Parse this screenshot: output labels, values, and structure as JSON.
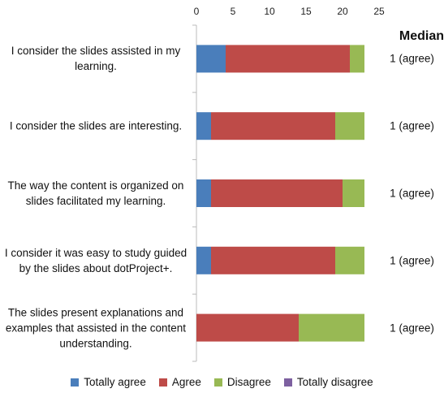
{
  "chart_data": {
    "type": "stacked-barh",
    "categories": [
      "I consider the slides assisted in my learning.",
      "I consider the slides are interesting.",
      "The way the content is organized on slides facilitated my learning.",
      "I consider it was easy to study guided by the slides about dotProject+.",
      "The slides present explanations and examples that assisted in the content understanding."
    ],
    "series": [
      {
        "name": "Totally agree",
        "color": "#4a7ebb",
        "values": [
          4,
          2,
          2,
          2,
          0
        ]
      },
      {
        "name": "Agree",
        "color": "#be4b48",
        "values": [
          17,
          17,
          18,
          17,
          14
        ]
      },
      {
        "name": "Disagree",
        "color": "#98b954",
        "values": [
          2,
          4,
          3,
          4,
          9
        ]
      },
      {
        "name": "Totally disagree",
        "color": "#7d60a0",
        "values": [
          0,
          0,
          0,
          0,
          0
        ]
      }
    ],
    "xlim": [
      0,
      25
    ],
    "xticks": [
      0,
      5,
      10,
      15,
      20,
      25
    ],
    "median_title": "Median",
    "medians": [
      "1 (agree)",
      "1 (agree)",
      "1 (agree)",
      "1 (agree)",
      "1 (agree)"
    ],
    "legend": "bottom"
  }
}
